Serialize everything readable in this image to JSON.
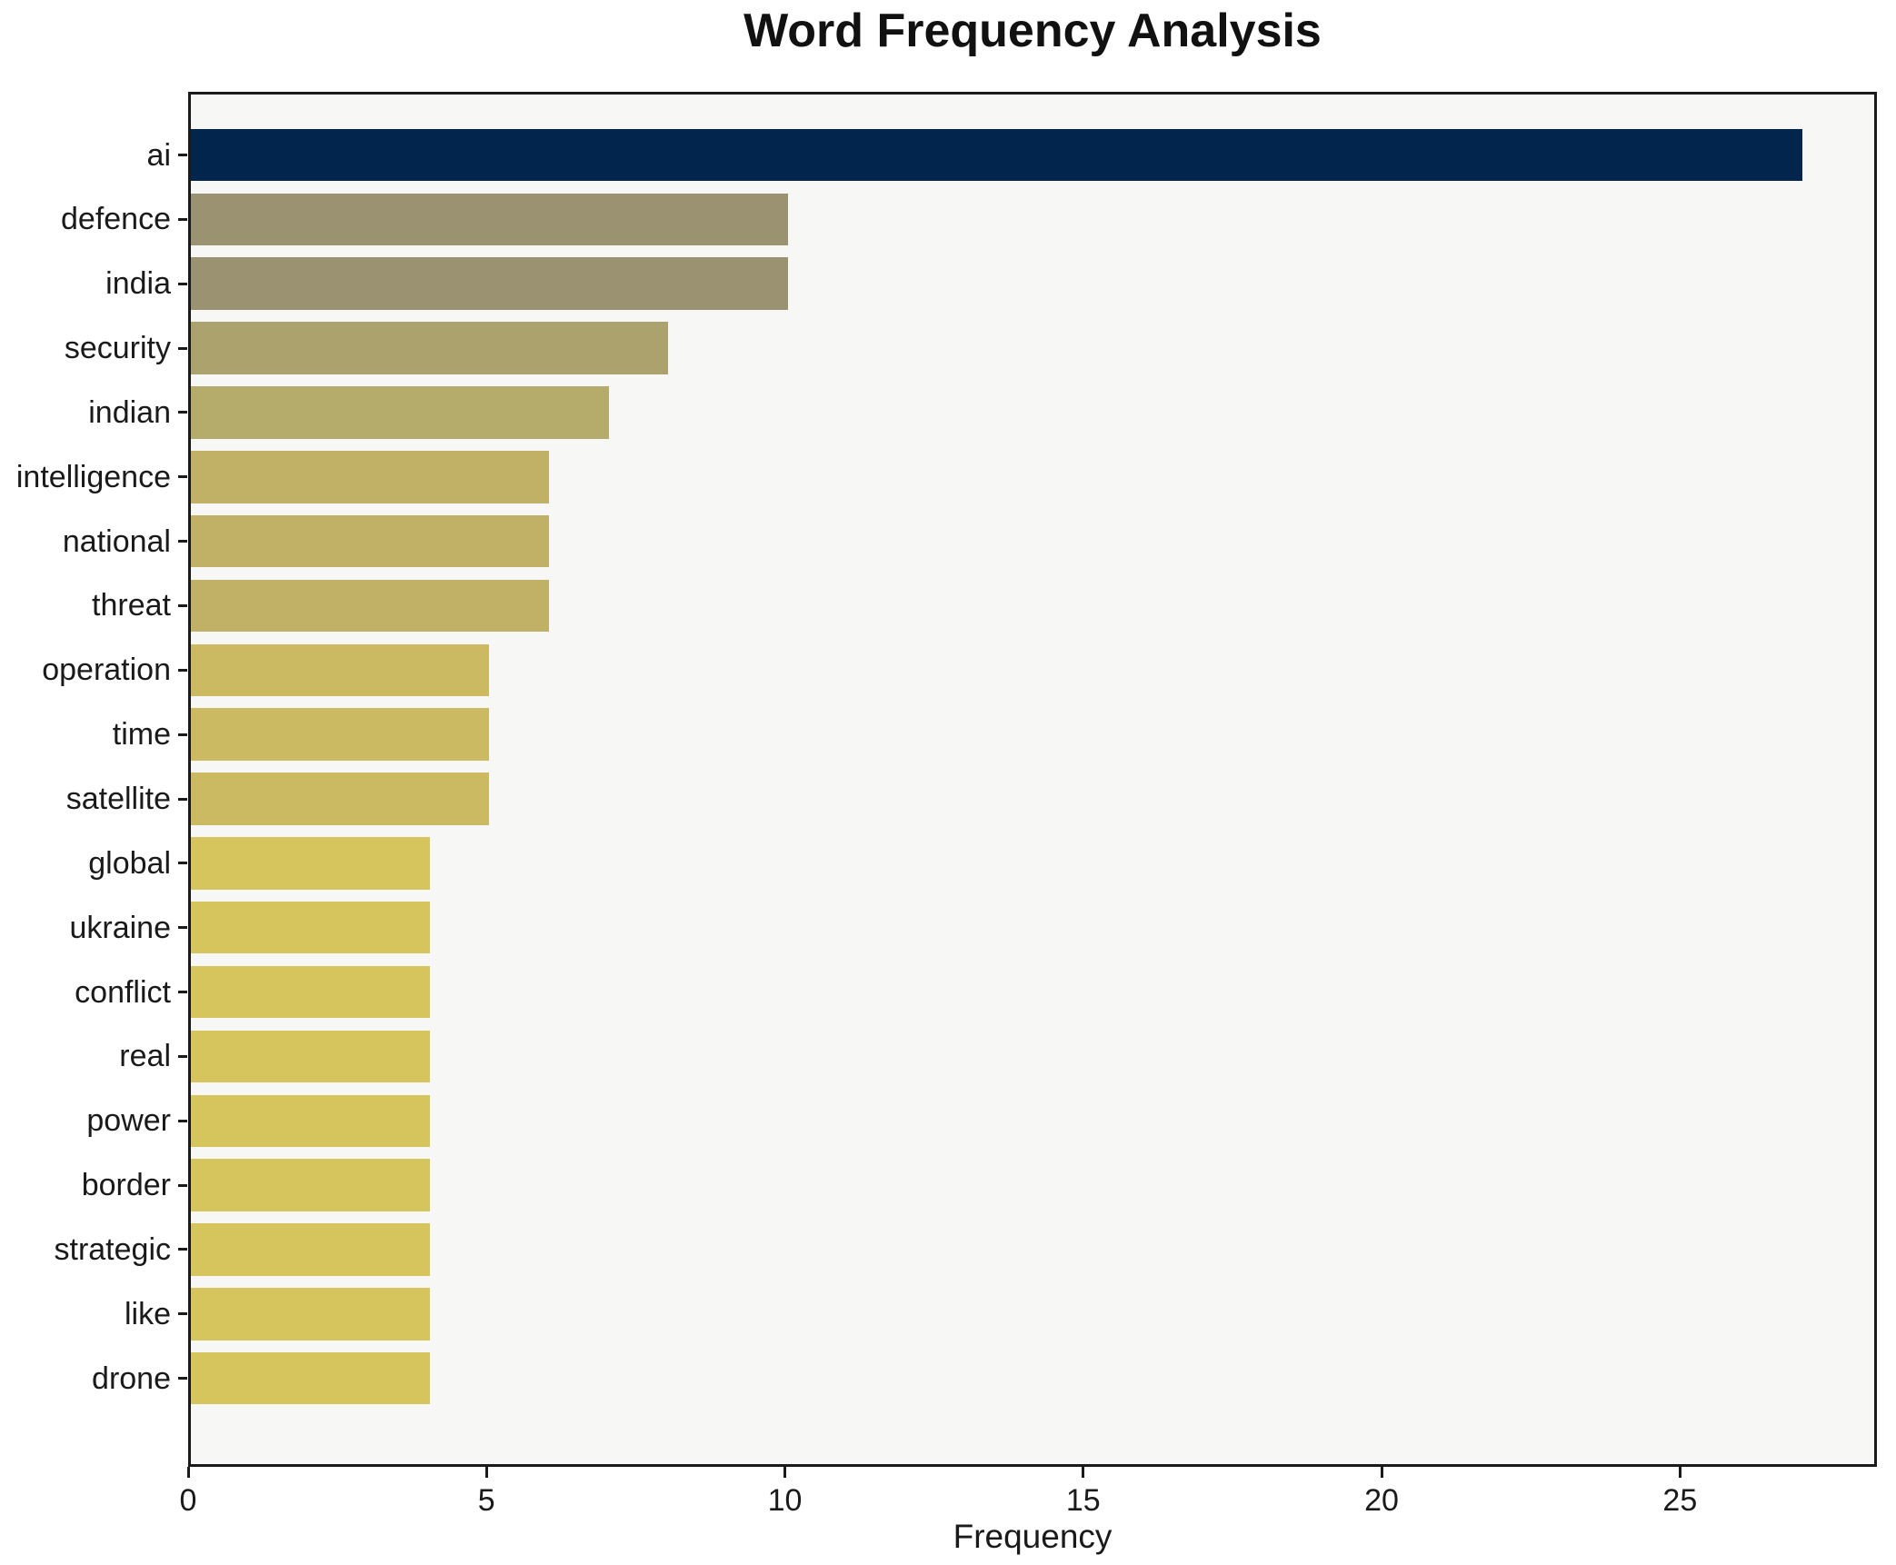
{
  "chart_data": {
    "type": "bar",
    "orientation": "horizontal",
    "title": "Word Frequency Analysis",
    "xlabel": "Frequency",
    "ylabel": "",
    "categories": [
      "ai",
      "defence",
      "india",
      "security",
      "indian",
      "intelligence",
      "national",
      "threat",
      "operation",
      "time",
      "satellite",
      "global",
      "ukraine",
      "conflict",
      "real",
      "power",
      "border",
      "strategic",
      "like",
      "drone"
    ],
    "values": [
      27,
      10,
      10,
      8,
      7,
      6,
      6,
      6,
      5,
      5,
      5,
      4,
      4,
      4,
      4,
      4,
      4,
      4,
      4,
      4
    ],
    "bar_colors": [
      "#02254e",
      "#9a9271",
      "#9a9271",
      "#aca26d",
      "#b5ab6a",
      "#c1b166",
      "#c1b166",
      "#c1b166",
      "#ccba62",
      "#ccba62",
      "#ccba62",
      "#d6c45c",
      "#d6c45c",
      "#d6c45c",
      "#d6c45c",
      "#d6c45c",
      "#d6c45c",
      "#d6c45c",
      "#d6c45c",
      "#d6c45c"
    ],
    "xticks": [
      0,
      5,
      10,
      15,
      20,
      25
    ],
    "xlim": [
      0,
      28.3
    ],
    "grid": false,
    "legend_position": "none",
    "plot_background": "#f7f7f5",
    "figure_background": "#ffffff",
    "spine_color": "#1a1a1a",
    "text_color": "#1a1a1a"
  }
}
